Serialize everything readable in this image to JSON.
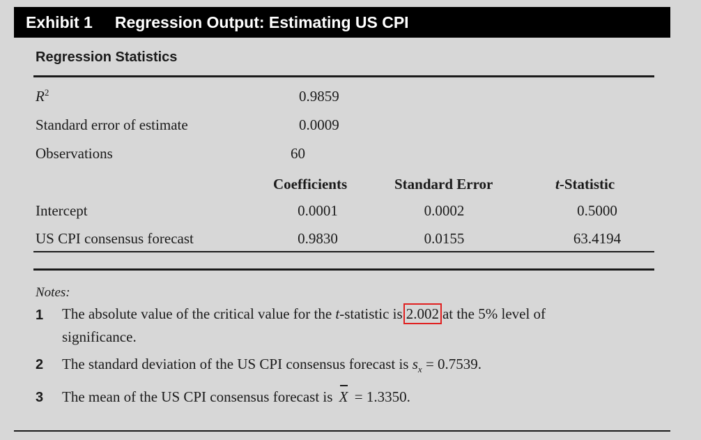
{
  "exhibit": {
    "label": "Exhibit 1",
    "title": "Regression Output: Estimating US CPI"
  },
  "section_title": "Regression Statistics",
  "stats": {
    "r2_base": "R",
    "r2_sup": "2",
    "r2_value": "0.9859",
    "se_label": "Standard error of estimate",
    "se_value": "0.0009",
    "obs_label": "Observations",
    "obs_value": "60"
  },
  "coef_table": {
    "headers": [
      "Coefficients",
      "Standard Error",
      "-Statistic"
    ],
    "t_italic": "t",
    "rows": [
      {
        "label": "Intercept",
        "coef": "0.0001",
        "se": "0.0002",
        "t": "0.5000"
      },
      {
        "label": "US CPI consensus forecast",
        "coef": "0.9830",
        "se": "0.0155",
        "t": "63.4194"
      }
    ]
  },
  "notes": {
    "label": "Notes:",
    "n1_num": "1",
    "n1_a": "The absolute value of the critical value for the ",
    "n1_t": "t",
    "n1_b": "-statistic is",
    "n1_highlight": "2.002",
    "n1_c": "at the 5% level of",
    "n1_d": "significance.",
    "n2_num": "2",
    "n2_a": "The standard deviation of the US CPI consensus forecast is ",
    "n2_s": "s",
    "n2_sub": "x",
    "n2_b": " = 0.7539.",
    "n3_num": "3",
    "n3_a": "The mean of the US CPI consensus forecast is ",
    "n3_x": "X",
    "n3_b": " = 1.3350."
  },
  "colors": {
    "header_bg": "#000000",
    "page_bg": "#d7d7d7",
    "highlight_box": "#e02020"
  }
}
